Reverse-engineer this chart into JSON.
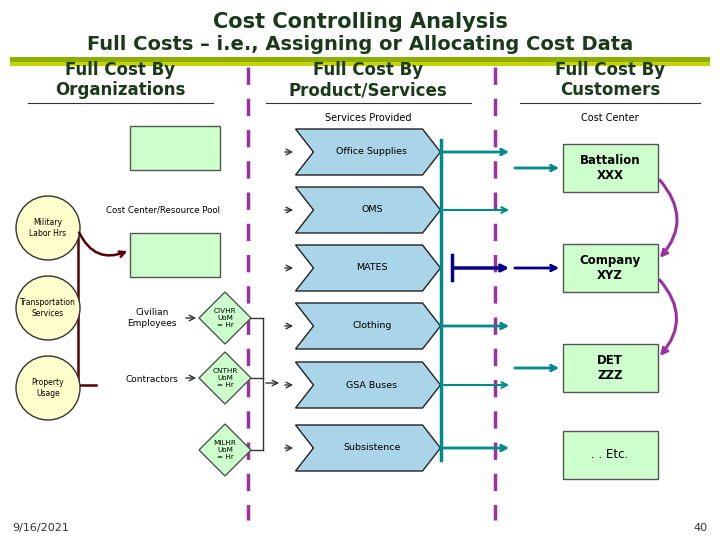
{
  "title_line1": "Cost Controlling Analysis",
  "title_line2": "Full Costs – i.e., Assigning or Allocating Cost Data",
  "title_color": "#1a3a1a",
  "title_fontsize": 15,
  "bg_color": "#ffffff",
  "stripe_color1": "#8db000",
  "stripe_color2": "#c8d400",
  "separator_color": "#9b30a0",
  "col1_header": "Full Cost By\nOrganizations",
  "col2_header": "Full Cost By\nProduct/Services",
  "col3_header": "Full Cost By\nCustomers",
  "header_color": "#1a3a1a",
  "header_fontsize": 12,
  "green_box_color": "#ccffcc",
  "green_box_edge": "#555555",
  "arrow_color_teal": "#008b8b",
  "arrow_color_blue": "#00008b",
  "arrow_color_purple": "#9b30a0",
  "arrow_color_dark": "#550000",
  "chevron_color": "#aad4e8",
  "chevron_edge": "#222222",
  "diamond_color": "#ccffcc",
  "circle_color": "#ffffcc",
  "date_text": "9/16/2021",
  "page_num": "40"
}
